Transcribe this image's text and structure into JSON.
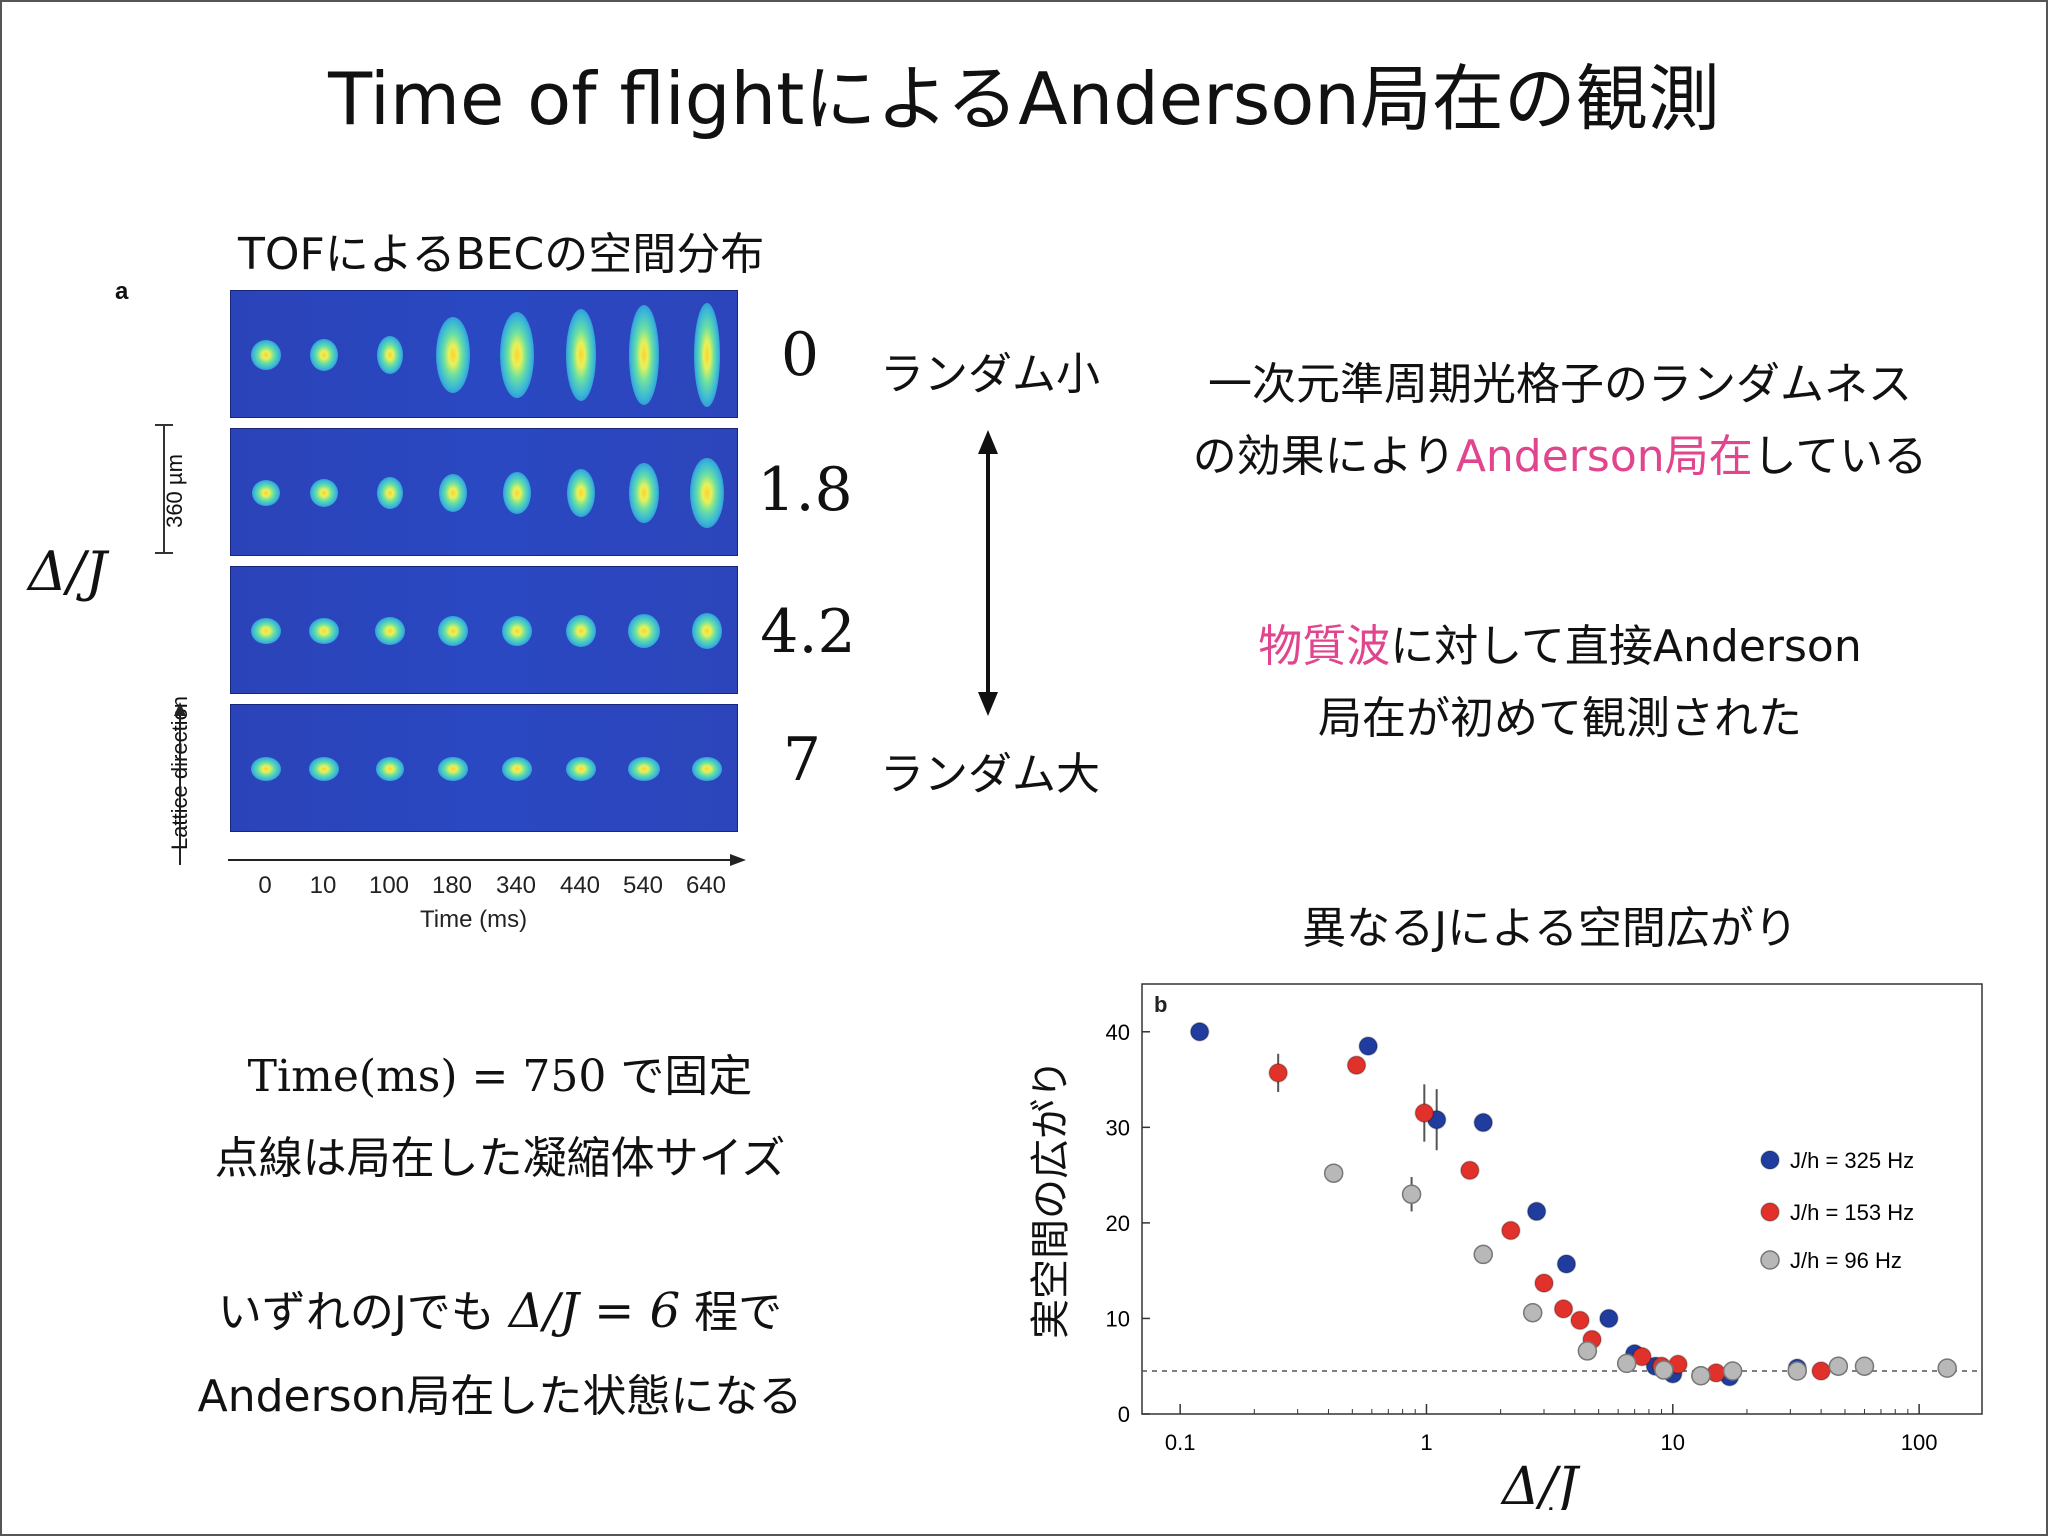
{
  "title": "Time of flightによるAnderson局在の観測",
  "tof": {
    "heading": "TOFによるBECの空間分布",
    "panel_label": "a",
    "scale_label": "360 µm",
    "lattice_label": "Lattice direction",
    "axis_label": "Time (ms)",
    "time_ticks": [
      "0",
      "10",
      "100",
      "180",
      "340",
      "440",
      "540",
      "640"
    ],
    "row_values": [
      "0",
      "1.8",
      "4.2",
      "7"
    ],
    "delta_label": "Δ/J",
    "random_small": "ランダム小",
    "random_large": "ランダム大"
  },
  "right_text": {
    "line1": "一次元準周期光格子のランダムネス",
    "line2_pre": "の効果により",
    "line2_highlight": "Anderson局在",
    "line2_post": "している",
    "line3_highlight": "物質波",
    "line3_post": "に対して直接Anderson",
    "line4": "局在が初めて観測された",
    "accent_color": "#e0458e"
  },
  "bottom_left": {
    "fixed_math": "Time(ms) = 750",
    "fixed_suffix": "で固定",
    "dotted_note": "点線は局在した凝縮体サイズ",
    "line3_pre": "いずれのJでも",
    "line3_math": "Δ/J = 6",
    "line3_post": "程で",
    "line4": "Anderson局在した状態になる"
  },
  "plot_heading": "異なるJによる空間広がり",
  "chart_data": {
    "type": "scatter",
    "panel_label": "b",
    "xlabel": "Δ/J",
    "ylabel": "実空間の広がり",
    "x_scale": "log",
    "xlim": [
      0.07,
      180
    ],
    "ylim": [
      0,
      45
    ],
    "x_ticks": [
      "0.1",
      "1",
      "10",
      "100"
    ],
    "y_ticks": [
      "0",
      "10",
      "20",
      "30",
      "40"
    ],
    "reference_line_y": 4.5,
    "legend_position": "right",
    "series": [
      {
        "name": "J/h = 325 Hz",
        "color": "#1f3c9e",
        "points": [
          [
            0.12,
            40
          ],
          [
            0.58,
            38.5
          ],
          [
            1.1,
            30.8
          ],
          [
            1.7,
            30.5
          ],
          [
            2.8,
            21.2
          ],
          [
            3.7,
            15.7
          ],
          [
            5.5,
            10
          ],
          [
            7,
            6.3
          ],
          [
            8.5,
            5
          ],
          [
            10,
            4.2
          ],
          [
            13,
            4
          ],
          [
            17,
            3.9
          ],
          [
            32,
            4.8
          ]
        ]
      },
      {
        "name": "J/h = 153 Hz",
        "color": "#e0322b",
        "points": [
          [
            0.25,
            35.7
          ],
          [
            0.52,
            36.5
          ],
          [
            0.98,
            31.5
          ],
          [
            1.5,
            25.5
          ],
          [
            2.2,
            19.2
          ],
          [
            3,
            13.7
          ],
          [
            3.6,
            11
          ],
          [
            4.2,
            9.8
          ],
          [
            4.7,
            7.8
          ],
          [
            7.5,
            6
          ],
          [
            9,
            5
          ],
          [
            10.5,
            5.2
          ],
          [
            15,
            4.3
          ],
          [
            40,
            4.5
          ]
        ]
      },
      {
        "name": "J/h = 96 Hz",
        "color": "#b8b8b8",
        "points": [
          [
            0.42,
            25.2
          ],
          [
            0.87,
            23
          ],
          [
            1.7,
            16.7
          ],
          [
            2.7,
            10.6
          ],
          [
            4.5,
            6.6
          ],
          [
            6.5,
            5.3
          ],
          [
            9.2,
            4.6
          ],
          [
            13,
            4
          ],
          [
            17.5,
            4.5
          ],
          [
            32,
            4.5
          ],
          [
            47,
            5
          ],
          [
            60,
            5
          ],
          [
            130,
            4.8
          ]
        ]
      }
    ]
  }
}
